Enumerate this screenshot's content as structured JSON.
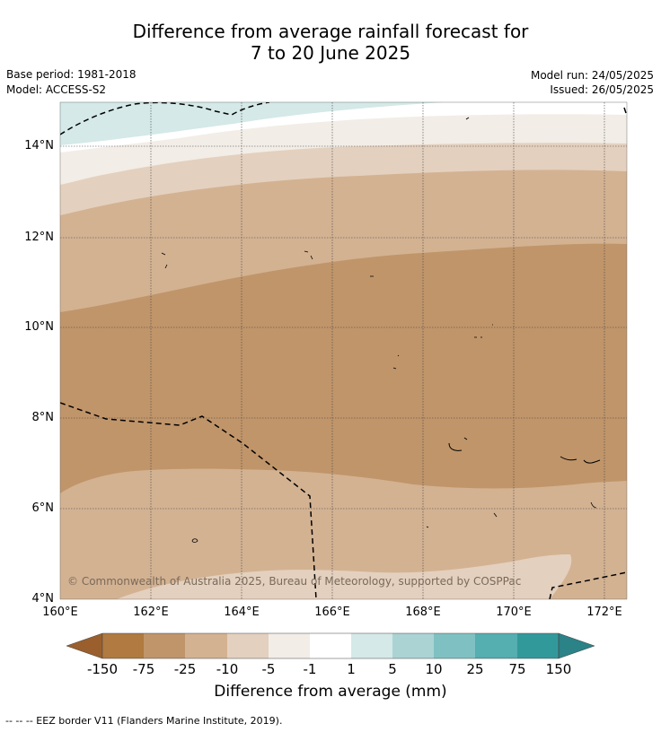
{
  "title_line1": "Difference from average rainfall forecast for",
  "title_line2": "7 to 20 June 2025",
  "base_period": "Base period: 1981-2018",
  "model": "Model: ACCESS-S2",
  "model_run": "Model run: 24/05/2025",
  "issued": "Issued: 26/05/2025",
  "map": {
    "lat_labels": [
      "14°N",
      "12°N",
      "10°N",
      "8°N",
      "6°N",
      "4°N"
    ],
    "lon_labels": [
      "160°E",
      "162°E",
      "164°E",
      "166°E",
      "168°E",
      "170°E",
      "172°E"
    ],
    "credit": "© Commonwealth of Australia 2025, Bureau of Meteorology, supported by COSPPac"
  },
  "colorbar": {
    "title": "Difference from average (mm)",
    "ticks": [
      "-150",
      "-75",
      "-25",
      "-10",
      "-5",
      "-1",
      "1",
      "5",
      "10",
      "25",
      "75",
      "150"
    ],
    "colors": [
      "#9a5f2d",
      "#b07a40",
      "#c0956a",
      "#d3b292",
      "#e4d0be",
      "#f2ede6",
      "#ffffff",
      "#d4e9e8",
      "#abd3d3",
      "#7fc1c2",
      "#55aeb0",
      "#32999b",
      "#2b8287"
    ]
  },
  "footer": "-- -- -- EEZ border V11 (Flanders Marine Institute, 2019)."
}
